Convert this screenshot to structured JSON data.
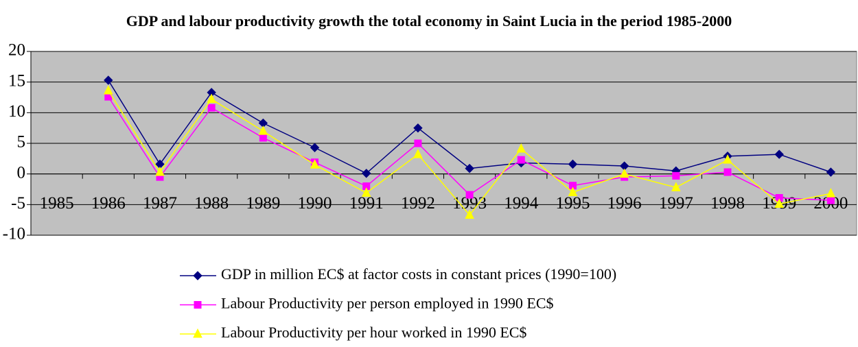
{
  "chart_data": {
    "type": "line",
    "title": "GDP and labour productivity growth the total economy in Saint Lucia in the period 1985-2000",
    "categories": [
      "1985",
      "1986",
      "1987",
      "1988",
      "1989",
      "1990",
      "1991",
      "1992",
      "1993",
      "1994",
      "1995",
      "1996",
      "1997",
      "1998",
      "1999",
      "2000"
    ],
    "series": [
      {
        "name": "GDP  in million EC$  at factor costs in constant prices (1990=100)",
        "color": "#000080",
        "marker": "diamond",
        "values": [
          null,
          15.3,
          1.6,
          13.3,
          8.3,
          4.3,
          0.1,
          7.5,
          0.9,
          1.8,
          1.6,
          1.3,
          0.5,
          2.9,
          3.2,
          0.3
        ]
      },
      {
        "name": "Labour Productivity per person employed in 1990 EC$",
        "color": "#ff00ff",
        "marker": "square",
        "values": [
          null,
          12.6,
          -0.5,
          10.8,
          5.9,
          1.9,
          -2.0,
          5.0,
          -3.4,
          2.3,
          -1.9,
          -0.5,
          -0.3,
          0.3,
          -3.9,
          -4.3
        ]
      },
      {
        "name": "Labour Productivity per hour worked in 1990 EC$",
        "color": "#ffff00",
        "marker": "triangle",
        "values": [
          null,
          13.6,
          0.3,
          12.2,
          7.0,
          1.5,
          -3.1,
          3.2,
          -6.7,
          4.1,
          -3.0,
          0.0,
          -2.2,
          2.3,
          -4.9,
          -3.2
        ]
      }
    ],
    "ylim": [
      -10,
      20
    ],
    "yticks": [
      -10,
      -5,
      0,
      5,
      10,
      15,
      20
    ],
    "grid": true,
    "legend": "bottom"
  }
}
